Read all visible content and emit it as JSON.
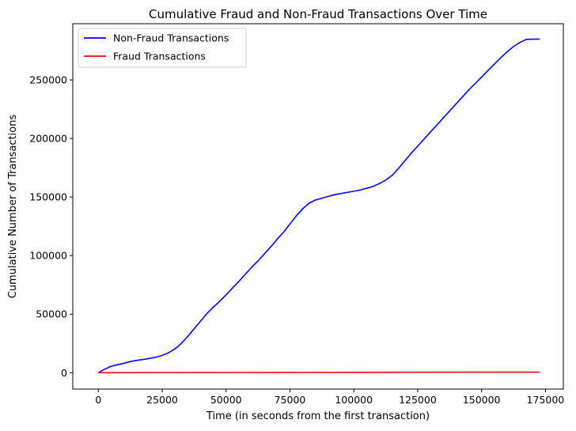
{
  "chart_data": {
    "type": "line",
    "title": "Cumulative Fraud and Non-Fraud Transactions Over Time",
    "xlabel": "Time (in seconds from the first transaction)",
    "ylabel": "Cumulative Number of Transactions",
    "xlim": [
      -10000,
      182000
    ],
    "ylim": [
      -14000,
      298000
    ],
    "xticks": [
      0,
      25000,
      50000,
      75000,
      100000,
      125000,
      150000,
      175000
    ],
    "xtick_labels": [
      "0",
      "25000",
      "50000",
      "75000",
      "100000",
      "125000",
      "150000",
      "175000"
    ],
    "yticks": [
      0,
      50000,
      100000,
      150000,
      200000,
      250000
    ],
    "ytick_labels": [
      "0",
      "50000",
      "100000",
      "150000",
      "200000",
      "250000"
    ],
    "grid": false,
    "legend_position": "top-left",
    "series": [
      {
        "name": "Non-Fraud Transactions",
        "color": "#0000ff",
        "x": [
          0,
          2500,
          5000,
          7500,
          10000,
          12500,
          15000,
          17500,
          20000,
          22500,
          25000,
          27500,
          30000,
          32500,
          35000,
          37500,
          40000,
          42500,
          45000,
          47500,
          50000,
          52500,
          55000,
          57500,
          60000,
          62500,
          65000,
          67500,
          70000,
          72500,
          75000,
          77500,
          80000,
          82500,
          85000,
          87500,
          90000,
          92500,
          95000,
          97500,
          100000,
          102500,
          105000,
          107500,
          110000,
          112500,
          115000,
          117500,
          120000,
          122500,
          125000,
          127500,
          130000,
          132500,
          135000,
          137500,
          140000,
          142500,
          145000,
          147500,
          150000,
          152500,
          155000,
          157500,
          160000,
          162500,
          165000,
          167500,
          170000,
          172800
        ],
        "values": [
          0,
          3000,
          5500,
          6800,
          8000,
          9500,
          10500,
          11300,
          12200,
          13200,
          14800,
          17000,
          20300,
          25000,
          31000,
          37500,
          44000,
          50500,
          56000,
          61000,
          66500,
          72300,
          78000,
          84000,
          90000,
          95500,
          101500,
          107500,
          114000,
          120000,
          127000,
          134000,
          140000,
          144800,
          147500,
          149000,
          150500,
          152000,
          153000,
          154000,
          155000,
          156000,
          157500,
          159000,
          161500,
          164500,
          168500,
          174500,
          181000,
          187500,
          193500,
          199500,
          205500,
          211500,
          217500,
          223500,
          229500,
          235500,
          241500,
          247000,
          252500,
          258000,
          263500,
          269000,
          274000,
          278500,
          282000,
          284600,
          284800,
          284900
        ]
      },
      {
        "name": "Fraud Transactions",
        "color": "#ff0000",
        "x": [
          0,
          25000,
          50000,
          75000,
          100000,
          125000,
          150000,
          172800
        ],
        "values": [
          0,
          100,
          180,
          250,
          330,
          390,
          450,
          492
        ]
      }
    ]
  }
}
